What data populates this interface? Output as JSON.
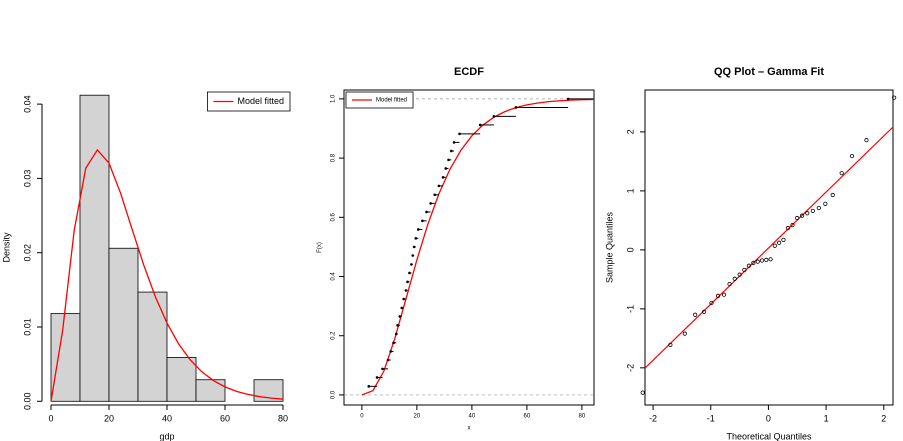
{
  "chart_data": [
    {
      "type": "histogram",
      "x_label": "gdp",
      "y_label": "Density",
      "bins": [
        0,
        10,
        20,
        30,
        40,
        50,
        60,
        70,
        80
      ],
      "values": [
        0.0118,
        0.0412,
        0.0206,
        0.0147,
        0.0059,
        0.0029,
        0,
        0.0029
      ],
      "bar_color": "#d3d3d3",
      "series": [
        {
          "name": "Model fitted",
          "color": "#ff0000",
          "x": [
            0,
            4,
            8,
            12,
            16,
            20,
            24,
            28,
            32,
            36,
            40,
            44,
            48,
            52,
            56,
            60,
            64,
            68,
            72,
            76,
            80
          ],
          "values": [
            0,
            0.00948,
            0.02299,
            0.03138,
            0.03383,
            0.03206,
            0.02801,
            0.02312,
            0.01832,
            0.01406,
            0.01053,
            0.00773,
            0.00558,
            0.00397,
            0.00279,
            0.00194,
            0.00134,
            0.00092,
            0.00062,
            0.00042,
            0.00028
          ]
        }
      ],
      "xlim": [
        -3.1,
        83.1
      ],
      "ylim": [
        -0.0005,
        0.0419
      ],
      "xticks": [
        0,
        20,
        40,
        60,
        80
      ],
      "yticks": [
        {
          "value": 0,
          "label": "0.00"
        },
        {
          "value": 0.01,
          "label": "0.01"
        },
        {
          "value": 0.02,
          "label": "0.02"
        },
        {
          "value": 0.03,
          "label": "0.03"
        },
        {
          "value": 0.04,
          "label": "0.04"
        }
      ],
      "frame": false,
      "legend": "topright"
    },
    {
      "type": "ecdf",
      "title": "ECDF",
      "x_label": "x",
      "y_label": "F(x)",
      "x": [
        2.5,
        5.5,
        7.5,
        9.5,
        10.5,
        11.5,
        12.5,
        13,
        13.8,
        14.5,
        15.2,
        16,
        16.6,
        17.3,
        18,
        18.5,
        19,
        19.6,
        20.5,
        22,
        23.5,
        25,
        26.5,
        28,
        29.5,
        30.5,
        31.5,
        32.5,
        33.5,
        35.5,
        43,
        48,
        56,
        75
      ],
      "values": [
        0.029,
        0.059,
        0.088,
        0.118,
        0.147,
        0.176,
        0.206,
        0.235,
        0.265,
        0.294,
        0.324,
        0.353,
        0.382,
        0.412,
        0.441,
        0.471,
        0.5,
        0.529,
        0.559,
        0.588,
        0.618,
        0.647,
        0.676,
        0.706,
        0.735,
        0.765,
        0.794,
        0.824,
        0.853,
        0.882,
        0.912,
        0.941,
        0.971,
        1
      ],
      "color": "#000000",
      "series": [
        {
          "name": "Model fitted",
          "color": "#ff0000",
          "x": [
            0,
            4,
            8,
            12,
            16,
            20,
            24,
            28,
            32,
            36,
            40,
            44,
            48,
            52,
            56,
            60,
            64,
            68,
            72,
            76,
            80,
            84
          ],
          "values": [
            0,
            0.0144,
            0.0803,
            0.1912,
            0.3233,
            0.4562,
            0.5768,
            0.6791,
            0.7619,
            0.8264,
            0.8753,
            0.9116,
            0.938,
            0.957,
            0.9704,
            0.9797,
            0.9862,
            0.9907,
            0.9938,
            0.9958,
            0.9972,
            0.9982
          ]
        }
      ],
      "reference_lines": [
        0,
        1
      ],
      "xlim": [
        -6.5,
        84.4
      ],
      "ylim": [
        -0.034,
        1.03
      ],
      "xticks": [
        0,
        20,
        40,
        60,
        80
      ],
      "yticks": [
        {
          "value": 0,
          "label": "0.0"
        },
        {
          "value": 0.2,
          "label": "0.2"
        },
        {
          "value": 0.4,
          "label": "0.4"
        },
        {
          "value": 0.6,
          "label": "0.6"
        },
        {
          "value": 0.8,
          "label": "0.8"
        },
        {
          "value": 1,
          "label": "1.0"
        }
      ],
      "frame": true,
      "legend": "topleft"
    },
    {
      "type": "qq",
      "title": "QQ Plot – Gamma Fit",
      "x_label": "Theoretical Quantiles",
      "y_label": "Sample Quantiles",
      "x": [
        -2.18,
        -1.7,
        -1.45,
        -1.27,
        -1.115,
        -0.987,
        -0.874,
        -0.77,
        -0.674,
        -0.584,
        -0.499,
        -0.417,
        -0.338,
        -0.261,
        -0.185,
        -0.111,
        -0.037,
        0.037,
        0.111,
        0.185,
        0.261,
        0.338,
        0.417,
        0.499,
        0.584,
        0.674,
        0.77,
        0.874,
        0.987,
        1.115,
        1.27,
        1.45,
        1.7,
        2.18
      ],
      "values": [
        -2.42,
        -1.61,
        -1.42,
        -1.1,
        -1.05,
        -0.9,
        -0.78,
        -0.76,
        -0.58,
        -0.49,
        -0.42,
        -0.34,
        -0.27,
        -0.22,
        -0.2,
        -0.18,
        -0.17,
        -0.16,
        0.07,
        0.12,
        0.17,
        0.37,
        0.42,
        0.54,
        0.58,
        0.62,
        0.66,
        0.71,
        0.78,
        0.93,
        1.3,
        1.59,
        1.86,
        2.58
      ],
      "color": "#000000",
      "reference_line": {
        "intercept": 0.03,
        "slope": 0.95,
        "color": "#ff0000"
      },
      "xlim": [
        -2.14,
        2.16
      ],
      "ylim": [
        -2.63,
        2.71
      ],
      "xticks": [
        -2,
        -1,
        0,
        1,
        2
      ],
      "yticks": [
        -2,
        -1,
        0,
        1,
        2
      ],
      "frame": true
    }
  ]
}
